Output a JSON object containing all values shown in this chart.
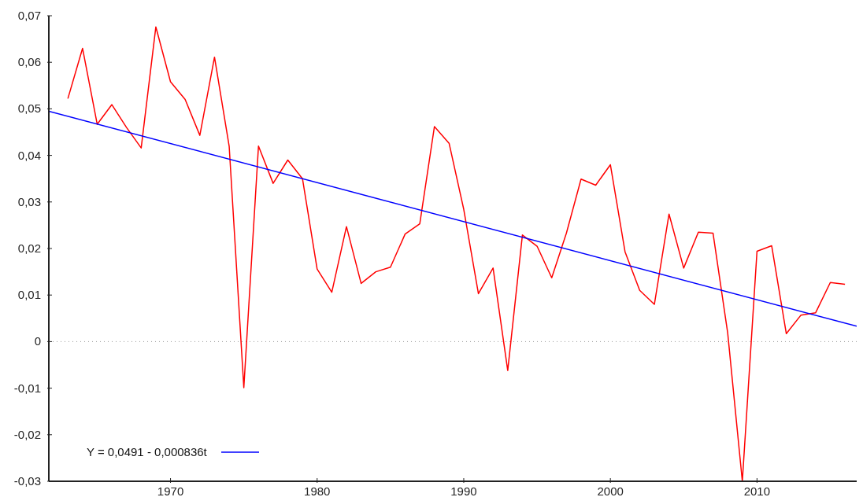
{
  "chart_data": {
    "type": "line",
    "x": [
      1963,
      1964,
      1965,
      1966,
      1967,
      1968,
      1969,
      1970,
      1971,
      1972,
      1973,
      1974,
      1975,
      1976,
      1977,
      1978,
      1979,
      1980,
      1981,
      1982,
      1983,
      1984,
      1985,
      1986,
      1987,
      1988,
      1989,
      1990,
      1991,
      1992,
      1993,
      1994,
      1995,
      1996,
      1997,
      1998,
      1999,
      2000,
      2001,
      2002,
      2003,
      2004,
      2005,
      2006,
      2007,
      2008,
      2009,
      2010,
      2011,
      2012,
      2013,
      2014,
      2015,
      2016
    ],
    "series": [
      {
        "color": "#ff0000",
        "values": [
          0.0522,
          0.063,
          0.0467,
          0.0509,
          0.046,
          0.0416,
          0.0676,
          0.0558,
          0.052,
          0.0443,
          0.0611,
          0.042,
          -0.0099,
          0.042,
          0.034,
          0.039,
          0.035,
          0.0156,
          0.0106,
          0.0247,
          0.0125,
          0.015,
          0.016,
          0.0231,
          0.0253,
          0.0462,
          0.0426,
          0.0284,
          0.0103,
          0.0158,
          -0.0062,
          0.0229,
          0.0205,
          0.0137,
          0.0233,
          0.0349,
          0.0336,
          0.038,
          0.0193,
          0.011,
          0.008,
          0.0274,
          0.0158,
          0.0235,
          0.0233,
          0.0019,
          -0.03,
          0.0194,
          0.0206,
          0.0017,
          0.0057,
          0.0062,
          0.0127,
          0.0123
        ]
      },
      {
        "name": "Y = 0,0491 - 0,000836t",
        "color": "#0000ff",
        "x": [
          1961.7,
          2016.8
        ],
        "values": [
          0.0495,
          0.0033
        ]
      }
    ],
    "xlim": [
      1961.7,
      2016.8
    ],
    "xticks": [
      1970,
      1980,
      1990,
      2000,
      2010
    ],
    "ylim": [
      -0.03,
      0.07
    ],
    "yticks": [
      {
        "value": -0.03,
        "label": "-0,03"
      },
      {
        "value": -0.02,
        "label": "-0,02"
      },
      {
        "value": -0.01,
        "label": "-0,01"
      },
      {
        "value": 0,
        "label": "0"
      },
      {
        "value": 0.01,
        "label": "0,01"
      },
      {
        "value": 0.02,
        "label": "0,02"
      },
      {
        "value": 0.03,
        "label": "0,03"
      },
      {
        "value": 0.04,
        "label": "0,04"
      },
      {
        "value": 0.05,
        "label": "0,05"
      },
      {
        "value": 0.06,
        "label": "0,06"
      },
      {
        "value": 0.07,
        "label": "0,07"
      }
    ],
    "ref_lines": [
      {
        "axis": "y",
        "value": 0,
        "color": "#999999",
        "line_style": "dotted"
      }
    ],
    "legend": "bottom left"
  }
}
